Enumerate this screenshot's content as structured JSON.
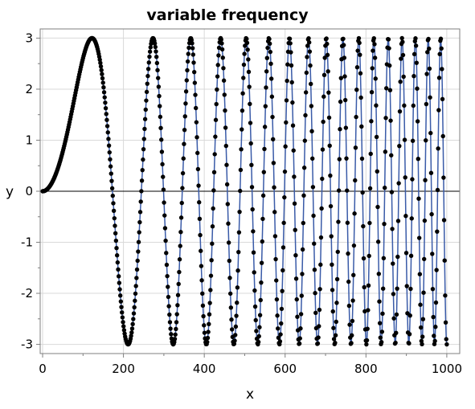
{
  "chart_data": {
    "type": "line",
    "title": "variable frequency",
    "xlabel": "x",
    "ylabel": "y",
    "xlim": [
      -6,
      1032
    ],
    "ylim": [
      -3.18,
      3.18
    ],
    "xticks": [
      0,
      200,
      400,
      600,
      800,
      1000
    ],
    "yticks": [
      3,
      2,
      1,
      0,
      -1,
      -2,
      -3
    ],
    "grid": true,
    "zero_line": true,
    "series": [
      {
        "function": "y = 3 * sin(x^2 / 9500)",
        "x_start": 0,
        "x_end": 1000,
        "n_points": 750,
        "marker": "circle",
        "marker_color": "#000000",
        "line_color": "#3a5ba8"
      }
    ]
  }
}
